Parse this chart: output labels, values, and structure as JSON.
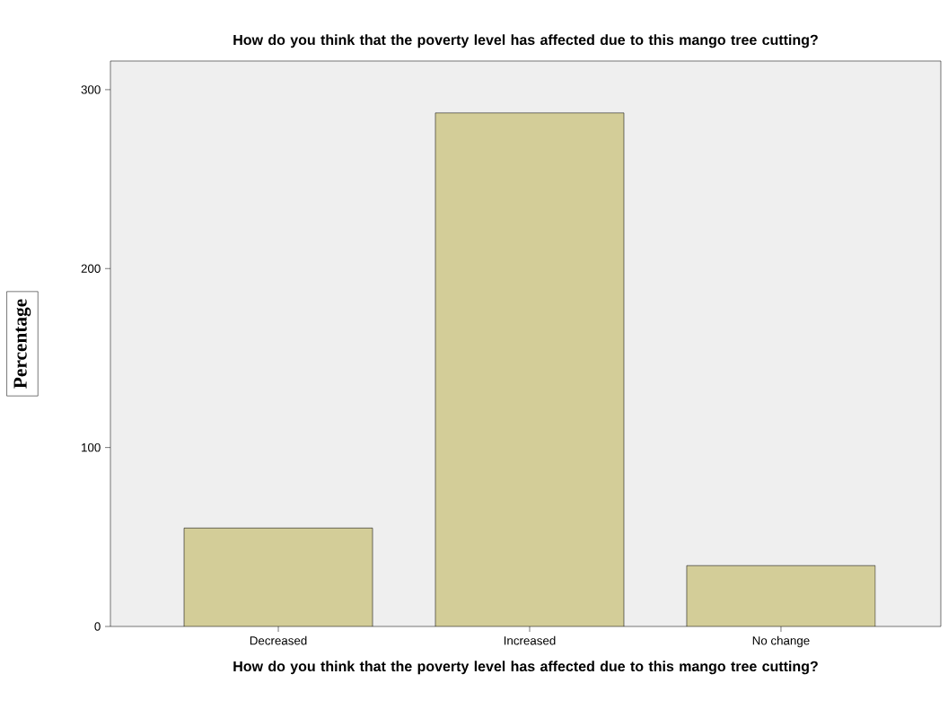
{
  "chart_data": {
    "type": "bar",
    "title": "How do you think that the poverty level has affected due to this mango tree cutting?",
    "xlabel": "How do you think that the poverty level has affected due to this mango tree cutting?",
    "ylabel": "Percentage",
    "categories": [
      "Decreased",
      "Increased",
      "No change"
    ],
    "values": [
      55,
      287,
      34
    ],
    "color": "#d3cd98",
    "ylim": [
      0,
      316
    ],
    "yticks": [
      0,
      100,
      200,
      300
    ]
  }
}
